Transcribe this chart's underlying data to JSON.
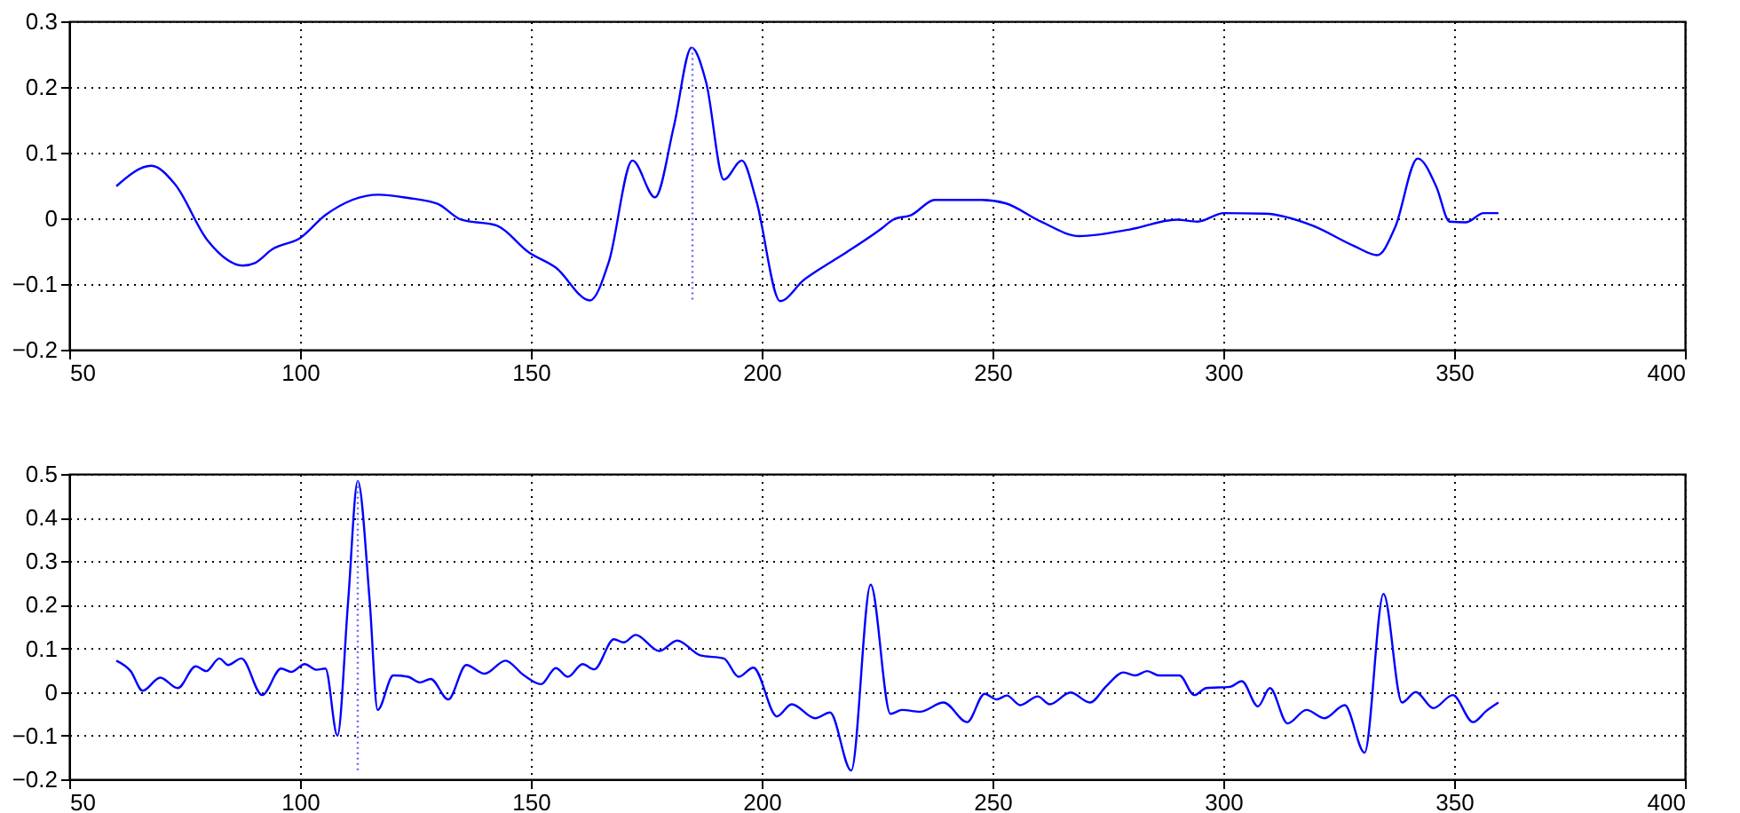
{
  "chart_data": [
    {
      "type": "line",
      "xlim": [
        50,
        400
      ],
      "xticks": [
        50,
        100,
        150,
        200,
        250,
        300,
        350,
        400
      ],
      "ylim": [
        -0.2,
        0.3
      ],
      "yticks": [
        -0.2,
        -0.1,
        0,
        0.1,
        0.2,
        0.3
      ],
      "grid": true,
      "marker": "none",
      "series": [
        {
          "color": "#0000ff",
          "line_style": "solid",
          "x": [
            60.2,
            67.8,
            72.9,
            79.9,
            87.6,
            90.2,
            94,
            100,
            105.5,
            117,
            123.4,
            129.8,
            134.9,
            142.6,
            149.6,
            155.4,
            162.8,
            166.9,
            172,
            176.9,
            181,
            184.8,
            188,
            191.8,
            195.7,
            198.8,
            204,
            209.1,
            214.2,
            218.3,
            225.7,
            228.5,
            232.4,
            237.5,
            247.7,
            252.8,
            260.5,
            268.8,
            279.7,
            289.9,
            294.4,
            300.1,
            309.1,
            319.3,
            328.3,
            333.4,
            337.2,
            342.1,
            346.2,
            349,
            352.6,
            356.4,
            359.6
          ],
          "values": [
            0.049,
            0.08,
            0.052,
            -0.033,
            -0.072,
            -0.068,
            -0.047,
            -0.03,
            0.005,
            0.036,
            0.031,
            0.022,
            -0.002,
            -0.011,
            -0.052,
            -0.075,
            -0.125,
            -0.066,
            0.088,
            0.032,
            0.141,
            0.26,
            0.206,
            0.059,
            0.088,
            0.028,
            -0.126,
            -0.094,
            -0.07,
            -0.052,
            -0.017,
            -0.002,
            0.005,
            0.028,
            0.028,
            0.023,
            -0.005,
            -0.027,
            -0.017,
            -0.002,
            -0.005,
            0.008,
            0.007,
            -0.011,
            -0.042,
            -0.056,
            -0.014,
            0.091,
            0.047,
            -0.005,
            -0.006,
            0.008,
            0.008
          ]
        },
        {
          "color": "#6666ff",
          "line_style": "dotted",
          "x": [
            185,
            185
          ],
          "values": [
            0.26,
            -0.128
          ]
        }
      ]
    },
    {
      "type": "line",
      "xlim": [
        50,
        400
      ],
      "xticks": [
        50,
        100,
        150,
        200,
        250,
        300,
        350,
        400
      ],
      "ylim": [
        -0.2,
        0.5
      ],
      "yticks": [
        -0.2,
        -0.1,
        0,
        0.1,
        0.2,
        0.3,
        0.4,
        0.5
      ],
      "grid": true,
      "marker": "none",
      "series": [
        {
          "color": "#0000ff",
          "line_style": "solid",
          "x": [
            60.2,
            63.3,
            65.9,
            69.7,
            73.5,
            77.4,
            79.7,
            82.5,
            84.4,
            87.3,
            91.8,
            95.9,
            98.1,
            101,
            103.6,
            105.5,
            108.1,
            110.4,
            112.5,
            115.1,
            116.8,
            120.2,
            123.4,
            126,
            128.3,
            132.1,
            136,
            140,
            144.5,
            148.4,
            152.2,
            155.4,
            158,
            161.2,
            163.7,
            168,
            170.1,
            172.7,
            177.8,
            181.7,
            186.7,
            191.8,
            195,
            198.2,
            203.3,
            206.5,
            211.6,
            214.8,
            219.4,
            223.6,
            227.9,
            230.4,
            234.3,
            239.4,
            244.5,
            248.3,
            250.9,
            253.1,
            256,
            259.8,
            262.4,
            266.9,
            271.1,
            274.6,
            278.4,
            280.9,
            283.5,
            286.1,
            290.5,
            293.7,
            296.3,
            301.4,
            304,
            307.5,
            310.1,
            313.9,
            318,
            321.9,
            326.3,
            330.6,
            334.7,
            338.7,
            341.7,
            345.5,
            349.7,
            354.1,
            357,
            359.6
          ],
          "values": [
            0.072,
            0.048,
            0.003,
            0.033,
            0.009,
            0.059,
            0.048,
            0.077,
            0.062,
            0.077,
            -0.007,
            0.054,
            0.046,
            0.064,
            0.051,
            0.054,
            -0.1,
            0.206,
            0.484,
            0.206,
            -0.041,
            0.038,
            0.035,
            0.022,
            0.03,
            -0.017,
            0.062,
            0.042,
            0.072,
            0.039,
            0.018,
            0.055,
            0.035,
            0.064,
            0.052,
            0.121,
            0.114,
            0.131,
            0.094,
            0.118,
            0.084,
            0.077,
            0.035,
            0.056,
            -0.056,
            -0.028,
            -0.06,
            -0.047,
            -0.18,
            0.246,
            -0.05,
            -0.041,
            -0.045,
            -0.024,
            -0.069,
            -0.004,
            -0.017,
            -0.008,
            -0.03,
            -0.01,
            -0.028,
            -0.001,
            -0.024,
            0.013,
            0.045,
            0.038,
            0.048,
            0.038,
            0.038,
            -0.007,
            0.009,
            0.012,
            0.025,
            -0.033,
            0.009,
            -0.072,
            -0.041,
            -0.06,
            -0.03,
            -0.139,
            0.225,
            -0.024,
            0,
            -0.037,
            -0.007,
            -0.069,
            -0.043,
            -0.024
          ]
        },
        {
          "color": "#6666ff",
          "line_style": "dotted",
          "x": [
            112.5,
            112.5
          ],
          "values": [
            0.484,
            -0.18
          ]
        }
      ]
    }
  ]
}
